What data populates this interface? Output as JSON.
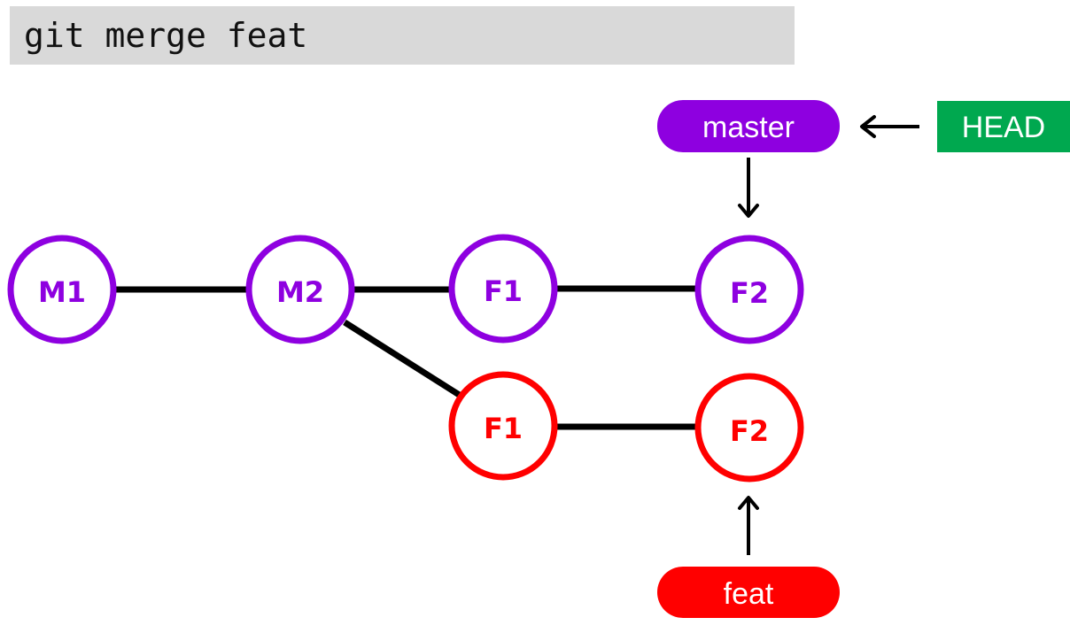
{
  "command": "git merge feat",
  "colors": {
    "master": "#8e00e0",
    "feat": "#ff0000",
    "head": "#00a84f",
    "edge": "#000000",
    "command_bg": "#d9d9d9"
  },
  "commits": {
    "m1": "M1",
    "m2": "M2",
    "master_f1": "F1",
    "master_f2": "F2",
    "feat_f1": "F1",
    "feat_f2": "F2"
  },
  "refs": {
    "master": "master",
    "feat": "feat",
    "head": "HEAD"
  }
}
